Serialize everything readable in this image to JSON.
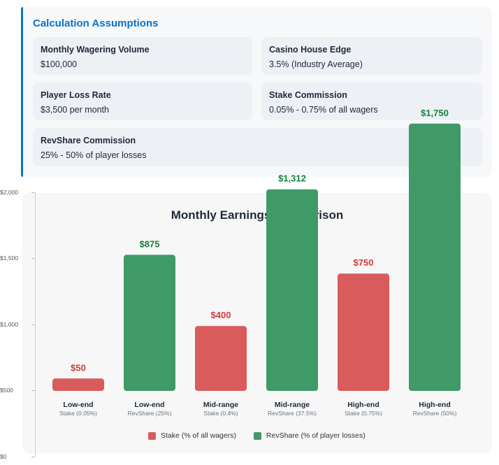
{
  "assumptions": {
    "title": "Calculation Assumptions",
    "items": [
      {
        "label": "Monthly Wagering Volume",
        "value": "$100,000"
      },
      {
        "label": "Casino House Edge",
        "value": "3.5% (Industry Average)"
      },
      {
        "label": "Player Loss Rate",
        "value": "$3,500 per month"
      },
      {
        "label": "Stake Commission",
        "value": "0.05% - 0.75% of all wagers"
      },
      {
        "label": "RevShare Commission",
        "value": "25% - 50% of player losses"
      }
    ]
  },
  "chart_data": {
    "type": "bar",
    "title": "Monthly Earnings Comparison",
    "ylim": [
      0,
      2000
    ],
    "yticks": [
      "$0",
      "$500",
      "$1,000",
      "$1,500",
      "$2,000"
    ],
    "categories": [
      {
        "name": "Low-end",
        "sub": "Stake (0.05%)"
      },
      {
        "name": "Low-end",
        "sub": "RevShare (25%)"
      },
      {
        "name": "Mid-range",
        "sub": "Stake (0.4%)"
      },
      {
        "name": "Mid-range",
        "sub": "RevShare (37.5%)"
      },
      {
        "name": "High-end",
        "sub": "Stake (0.75%)"
      },
      {
        "name": "High-end",
        "sub": "RevShare (50%)"
      }
    ],
    "bars": [
      {
        "value": 50,
        "label": "$50",
        "series": "Stake (% of all wagers)"
      },
      {
        "value": 875,
        "label": "$875",
        "series": "RevShare (% of player losses)"
      },
      {
        "value": 400,
        "label": "$400",
        "series": "Stake (% of all wagers)"
      },
      {
        "value": 1312,
        "label": "$1,312",
        "series": "RevShare (% of player losses)"
      },
      {
        "value": 750,
        "label": "$750",
        "series": "Stake (% of all wagers)"
      },
      {
        "value": 1750,
        "label": "$1,750",
        "series": "RevShare (% of player losses)"
      }
    ],
    "series": [
      {
        "name": "Stake (% of all wagers)",
        "color": "#d95b5b"
      },
      {
        "name": "RevShare (% of player losses)",
        "color": "#3f9a68"
      }
    ],
    "label_colors": {
      "Stake (% of all wagers)": "#d23b3b",
      "RevShare (% of player losses)": "#17803d"
    },
    "legend_position": "bottom",
    "grid": false
  }
}
